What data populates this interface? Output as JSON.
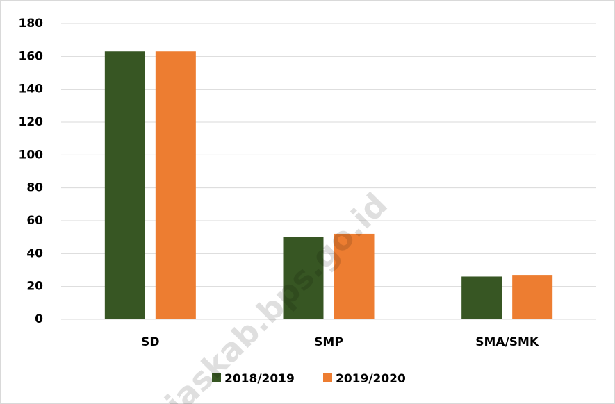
{
  "chart_data": {
    "type": "bar",
    "categories": [
      "SD",
      "SMP",
      "SMA/SMK"
    ],
    "series": [
      {
        "name": "2018/2019",
        "color": "#375623",
        "values": [
          163,
          50,
          26
        ]
      },
      {
        "name": "2019/2020",
        "color": "#ed7d31",
        "values": [
          163,
          52,
          27
        ]
      }
    ],
    "ylim": [
      0,
      180
    ],
    "yticks": [
      0,
      20,
      40,
      60,
      80,
      100,
      120,
      140,
      160,
      180
    ],
    "grid": true,
    "legend": "bottom",
    "annotation": "jaskab.bps.go.id"
  }
}
